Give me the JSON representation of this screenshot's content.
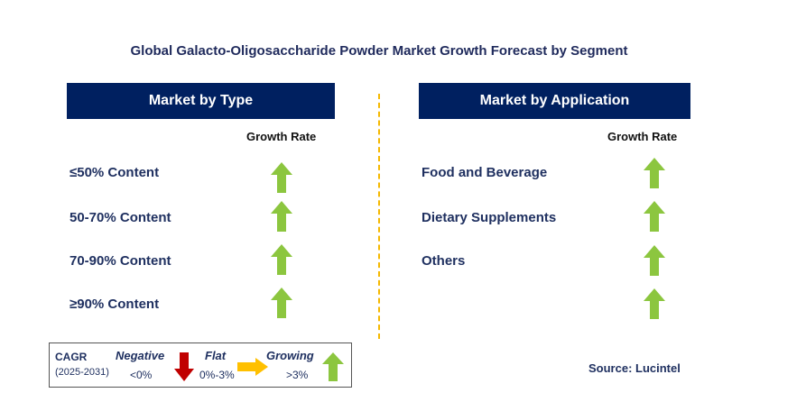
{
  "title": "Global Galacto-Oligosaccharide Powder Market Growth Forecast by Segment",
  "colors": {
    "header_bg": "#002060",
    "growing": "#8cc63f",
    "negative": "#c00000",
    "flat": "#ffc000",
    "divider": "#f5b800"
  },
  "panels": {
    "type": {
      "header": "Market by Type",
      "growth_label": "Growth Rate",
      "rows": [
        {
          "label": "≤50% Content",
          "trend": "growing"
        },
        {
          "label": "50-70% Content",
          "trend": "growing"
        },
        {
          "label": "70-90% Content",
          "trend": "growing"
        },
        {
          "label": "≥90% Content",
          "trend": "growing"
        }
      ]
    },
    "application": {
      "header": "Market by Application",
      "growth_label": "Growth Rate",
      "rows": [
        {
          "label": "Food and Beverage",
          "trend": "growing"
        },
        {
          "label": "Dietary Supplements",
          "trend": "growing"
        },
        {
          "label": "Others",
          "trend": "growing"
        },
        {
          "label": "",
          "trend": "growing"
        }
      ]
    }
  },
  "legend": {
    "cagr": "CAGR",
    "period": "(2025-2031)",
    "negative": {
      "label": "Negative",
      "range": "<0%",
      "icon": "down-arrow-icon"
    },
    "flat": {
      "label": "Flat",
      "range": "0%-3%",
      "icon": "right-arrow-icon"
    },
    "growing": {
      "label": "Growing",
      "range": ">3%",
      "icon": "up-arrow-icon"
    }
  },
  "source": "Source: Lucintel"
}
